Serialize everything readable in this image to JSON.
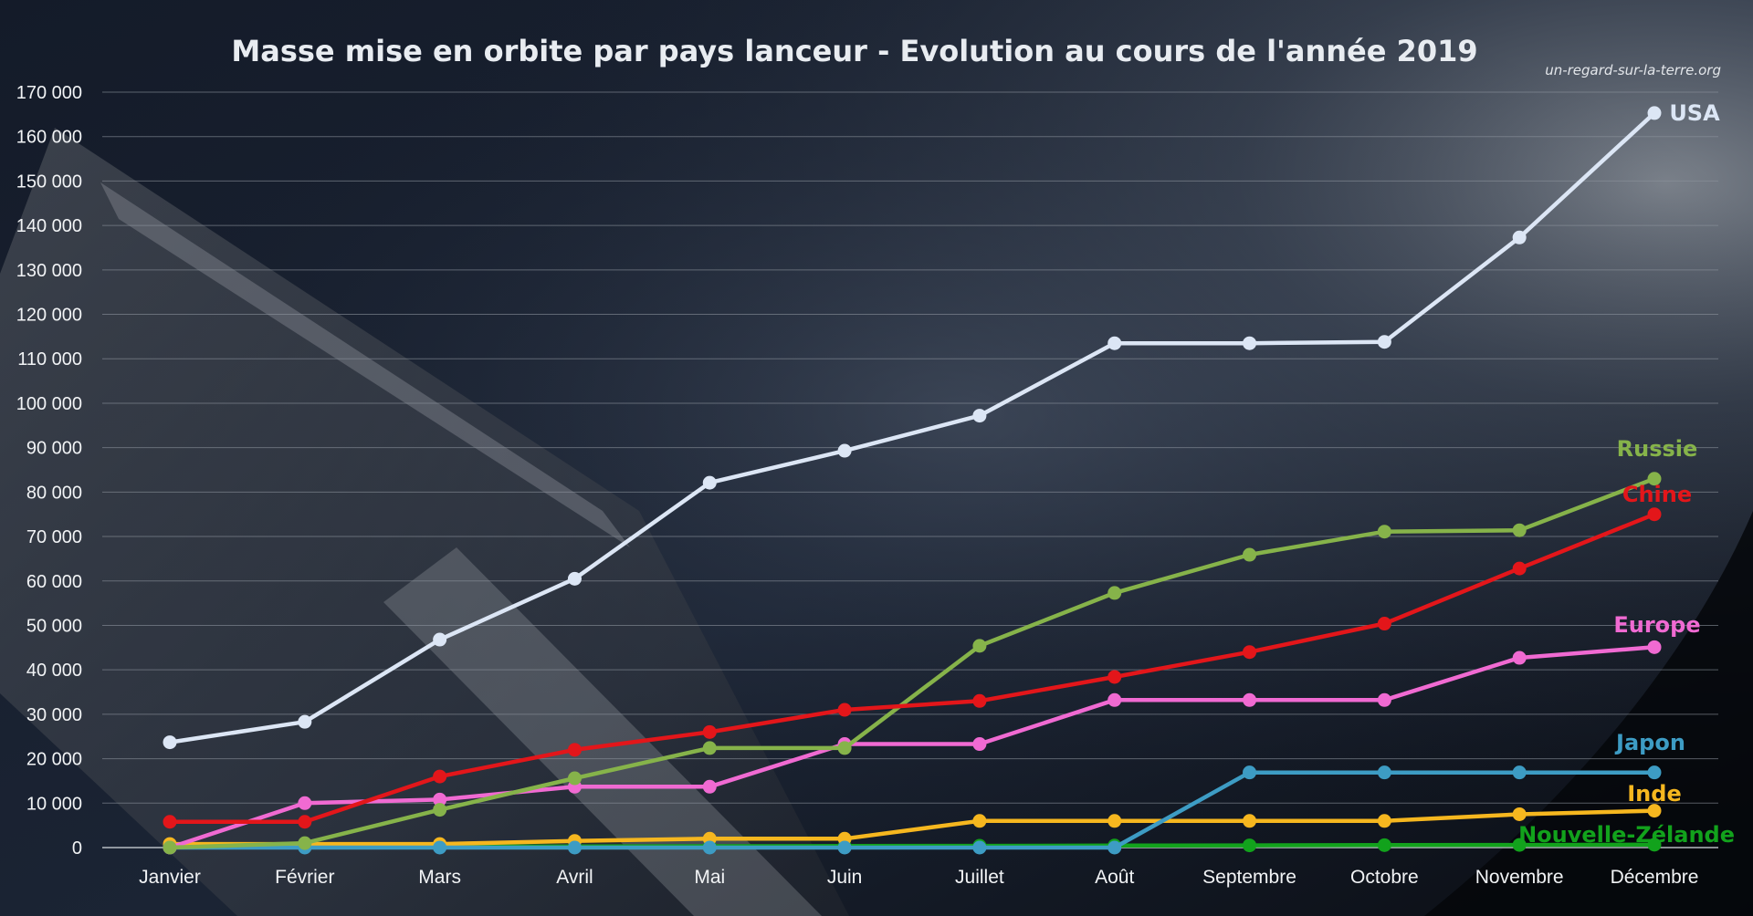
{
  "chart_data": {
    "type": "line",
    "title": "Masse mise en orbite par pays lanceur - Evolution au cours de l'année 2019",
    "source": "un-regard-sur-la-terre.org",
    "xlabel": "",
    "ylabel": "",
    "ylim": [
      0,
      170000
    ],
    "yticks": [
      0,
      10000,
      20000,
      30000,
      40000,
      50000,
      60000,
      70000,
      80000,
      90000,
      100000,
      110000,
      120000,
      130000,
      140000,
      150000,
      160000,
      170000
    ],
    "ytick_labels": [
      "0",
      "10 000",
      "20 000",
      "30 000",
      "40 000",
      "50 000",
      "60 000",
      "70 000",
      "80 000",
      "90 000",
      "100 000",
      "110 000",
      "120 000",
      "130 000",
      "140 000",
      "150 000",
      "160 000",
      "170 000"
    ],
    "categories": [
      "Janvier",
      "Février",
      "Mars",
      "Avril",
      "Mai",
      "Juin",
      "Juillet",
      "Août",
      "Septembre",
      "Octobre",
      "Novembre",
      "Décembre"
    ],
    "grid": true,
    "legend": "direct labels at line ends",
    "series": [
      {
        "name": "Nouvelle-Zélande",
        "color": "#12a21c",
        "values": [
          100,
          150,
          200,
          250,
          300,
          350,
          400,
          450,
          500,
          550,
          600,
          650
        ]
      },
      {
        "name": "Inde",
        "color": "#f6b71f",
        "values": [
          800,
          800,
          800,
          1500,
          2000,
          2000,
          6000,
          6000,
          6000,
          6000,
          7500,
          8300
        ]
      },
      {
        "name": "Japon",
        "color": "#3d9cc4",
        "values": [
          0,
          0,
          0,
          0,
          0,
          0,
          0,
          0,
          16900,
          16900,
          16900,
          16900
        ]
      },
      {
        "name": "Europe",
        "color": "#f06ad2",
        "values": [
          0,
          10000,
          10800,
          13700,
          13700,
          23300,
          23300,
          33200,
          33200,
          33200,
          42700,
          45100
        ]
      },
      {
        "name": "Russie",
        "color": "#86b34a",
        "values": [
          0,
          1000,
          8500,
          15600,
          22400,
          22400,
          45400,
          57300,
          65900,
          71100,
          71400,
          83000
        ]
      },
      {
        "name": "Chine",
        "color": "#e3161a",
        "values": [
          5800,
          5800,
          16000,
          22000,
          26000,
          31000,
          33000,
          38400,
          44000,
          50400,
          62800,
          75000
        ]
      },
      {
        "name": "USA",
        "color": "#dce6f5",
        "values": [
          23700,
          28300,
          46800,
          60500,
          82100,
          89300,
          97200,
          113500,
          113500,
          113800,
          137300,
          165300
        ]
      }
    ]
  }
}
